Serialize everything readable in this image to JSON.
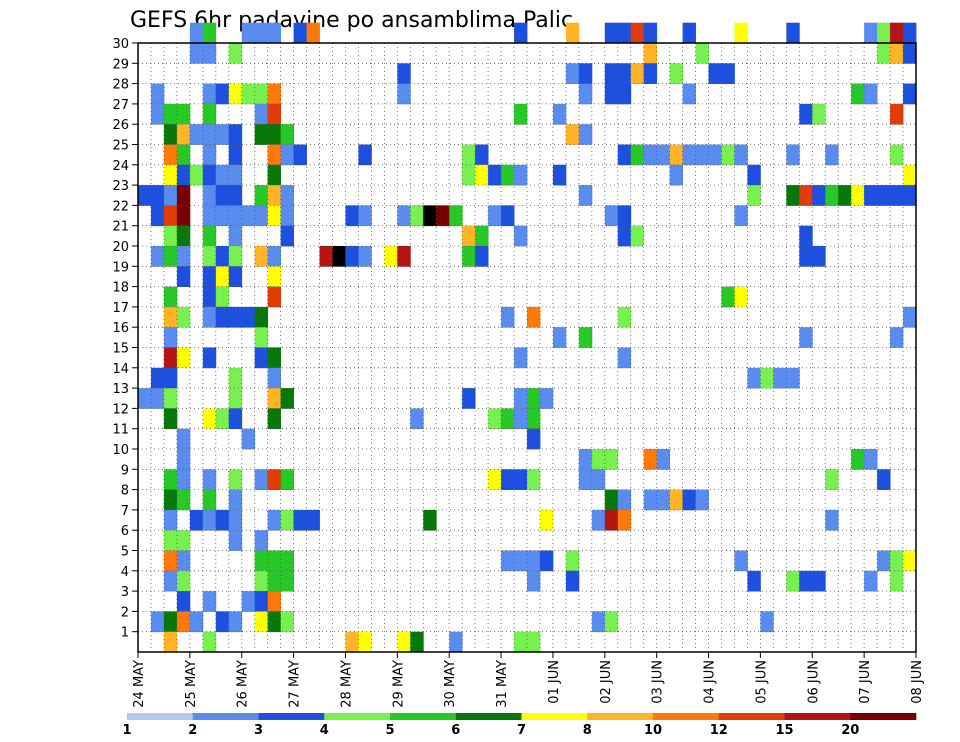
{
  "chart_data": {
    "type": "heatmap",
    "title": "GEFS 6hr padavine po ansamblima Palic",
    "xlabel": "",
    "ylabel": "",
    "x_ticks": [
      "24 MAY",
      "25 MAY",
      "26 MAY",
      "27 MAY",
      "28 MAY",
      "29 MAY",
      "30 MAY",
      "31 MAY",
      "01 JUN",
      "02 JUN",
      "03 JUN",
      "04 JUN",
      "05 JUN",
      "06 JUN",
      "07 JUN",
      "08 JUN"
    ],
    "y_ticks": [
      "1",
      "2",
      "3",
      "4",
      "5",
      "6",
      "7",
      "8",
      "9",
      "10",
      "11",
      "12",
      "13",
      "14",
      "15",
      "16",
      "17",
      "18",
      "19",
      "20",
      "21",
      "22",
      "23",
      "24",
      "25",
      "26",
      "27",
      "28",
      "29",
      "30"
    ],
    "x_range": [
      0,
      60
    ],
    "y_range": [
      0,
      30
    ],
    "grid": true,
    "levels": [
      "1",
      "2",
      "3",
      "4",
      "5",
      "6",
      "7",
      "8",
      "10",
      "12",
      "15",
      "20"
    ],
    "colors": [
      "#b4c8f0",
      "#5a8cf0",
      "#1e50e0",
      "#78f050",
      "#28c828",
      "#087808",
      "#ffff00",
      "#ffb428",
      "#ff780a",
      "#e03c0a",
      "#b41414",
      "#780000"
    ],
    "cells": [
      [
        4,
        30,
        1
      ],
      [
        5,
        30,
        4
      ],
      [
        8,
        30,
        1
      ],
      [
        9,
        30,
        1
      ],
      [
        10,
        30,
        1
      ],
      [
        12,
        30,
        2
      ],
      [
        13,
        30,
        8
      ],
      [
        29,
        30,
        2
      ],
      [
        33,
        30,
        7
      ],
      [
        36,
        30,
        2
      ],
      [
        37,
        30,
        2
      ],
      [
        38,
        30,
        9
      ],
      [
        39,
        30,
        2
      ],
      [
        42,
        30,
        2
      ],
      [
        46,
        30,
        6
      ],
      [
        50,
        30,
        2
      ],
      [
        56,
        30,
        1
      ],
      [
        57,
        30,
        3
      ],
      [
        58,
        30,
        10
      ],
      [
        59,
        30,
        2
      ],
      [
        4,
        29,
        1
      ],
      [
        5,
        29,
        1
      ],
      [
        7,
        29,
        3
      ],
      [
        39,
        29,
        7
      ],
      [
        43,
        29,
        3
      ],
      [
        57,
        29,
        3
      ],
      [
        58,
        29,
        7
      ],
      [
        59,
        29,
        2
      ],
      [
        20,
        28,
        2
      ],
      [
        33,
        28,
        1
      ],
      [
        34,
        28,
        2
      ],
      [
        36,
        28,
        2
      ],
      [
        37,
        28,
        2
      ],
      [
        38,
        28,
        7
      ],
      [
        39,
        28,
        2
      ],
      [
        41,
        28,
        3
      ],
      [
        44,
        28,
        2
      ],
      [
        45,
        28,
        2
      ],
      [
        1,
        27,
        1
      ],
      [
        5,
        27,
        1
      ],
      [
        6,
        27,
        2
      ],
      [
        7,
        27,
        6
      ],
      [
        8,
        27,
        3
      ],
      [
        9,
        27,
        3
      ],
      [
        10,
        27,
        8
      ],
      [
        20,
        27,
        1
      ],
      [
        34,
        27,
        1
      ],
      [
        36,
        27,
        2
      ],
      [
        37,
        27,
        2
      ],
      [
        42,
        27,
        1
      ],
      [
        55,
        27,
        4
      ],
      [
        56,
        27,
        1
      ],
      [
        59,
        27,
        2
      ],
      [
        1,
        26,
        1
      ],
      [
        2,
        26,
        4
      ],
      [
        3,
        26,
        4
      ],
      [
        5,
        26,
        4
      ],
      [
        9,
        26,
        1
      ],
      [
        10,
        26,
        9
      ],
      [
        29,
        26,
        4
      ],
      [
        32,
        26,
        1
      ],
      [
        51,
        26,
        2
      ],
      [
        52,
        26,
        3
      ],
      [
        58,
        26,
        9
      ],
      [
        2,
        25,
        5
      ],
      [
        3,
        25,
        7
      ],
      [
        4,
        25,
        1
      ],
      [
        5,
        25,
        1
      ],
      [
        6,
        25,
        1
      ],
      [
        7,
        25,
        2
      ],
      [
        9,
        25,
        5
      ],
      [
        10,
        25,
        5
      ],
      [
        11,
        25,
        4
      ],
      [
        33,
        25,
        7
      ],
      [
        34,
        25,
        1
      ],
      [
        2,
        24,
        8
      ],
      [
        3,
        24,
        4
      ],
      [
        5,
        24,
        1
      ],
      [
        7,
        24,
        2
      ],
      [
        10,
        24,
        8
      ],
      [
        11,
        24,
        1
      ],
      [
        12,
        24,
        2
      ],
      [
        17,
        24,
        2
      ],
      [
        25,
        24,
        3
      ],
      [
        26,
        24,
        2
      ],
      [
        37,
        24,
        2
      ],
      [
        38,
        24,
        4
      ],
      [
        39,
        24,
        1
      ],
      [
        40,
        24,
        1
      ],
      [
        41,
        24,
        7
      ],
      [
        42,
        24,
        1
      ],
      [
        43,
        24,
        1
      ],
      [
        44,
        24,
        1
      ],
      [
        45,
        24,
        3
      ],
      [
        46,
        24,
        1
      ],
      [
        50,
        24,
        1
      ],
      [
        53,
        24,
        1
      ],
      [
        58,
        24,
        3
      ],
      [
        2,
        23,
        6
      ],
      [
        3,
        23,
        2
      ],
      [
        4,
        23,
        3
      ],
      [
        5,
        23,
        2
      ],
      [
        6,
        23,
        1
      ],
      [
        7,
        23,
        1
      ],
      [
        10,
        23,
        5
      ],
      [
        25,
        23,
        3
      ],
      [
        26,
        23,
        6
      ],
      [
        27,
        23,
        2
      ],
      [
        28,
        23,
        4
      ],
      [
        29,
        23,
        1
      ],
      [
        32,
        23,
        2
      ],
      [
        41,
        23,
        1
      ],
      [
        47,
        23,
        2
      ],
      [
        59,
        23,
        6
      ],
      [
        0,
        22,
        2
      ],
      [
        1,
        22,
        2
      ],
      [
        2,
        22,
        1
      ],
      [
        3,
        22,
        11
      ],
      [
        5,
        22,
        1
      ],
      [
        6,
        22,
        2
      ],
      [
        7,
        22,
        2
      ],
      [
        9,
        22,
        4
      ],
      [
        10,
        22,
        7
      ],
      [
        11,
        22,
        1
      ],
      [
        34,
        22,
        1
      ],
      [
        47,
        22,
        3
      ],
      [
        50,
        22,
        5
      ],
      [
        51,
        22,
        9
      ],
      [
        52,
        22,
        2
      ],
      [
        53,
        22,
        4
      ],
      [
        54,
        22,
        5
      ],
      [
        55,
        22,
        6
      ],
      [
        56,
        22,
        2
      ],
      [
        57,
        22,
        2
      ],
      [
        58,
        22,
        2
      ],
      [
        59,
        22,
        2
      ],
      [
        1,
        21,
        2
      ],
      [
        2,
        21,
        9
      ],
      [
        3,
        21,
        11
      ],
      [
        5,
        21,
        1
      ],
      [
        6,
        21,
        1
      ],
      [
        7,
        21,
        1
      ],
      [
        8,
        21,
        1
      ],
      [
        9,
        21,
        1
      ],
      [
        10,
        21,
        6
      ],
      [
        11,
        21,
        1
      ],
      [
        16,
        21,
        2
      ],
      [
        17,
        21,
        1
      ],
      [
        20,
        21,
        1
      ],
      [
        21,
        21,
        3
      ],
      [
        22,
        21,
        12
      ],
      [
        23,
        21,
        11
      ],
      [
        24,
        21,
        4
      ],
      [
        27,
        21,
        1
      ],
      [
        28,
        21,
        2
      ],
      [
        36,
        21,
        1
      ],
      [
        37,
        21,
        2
      ],
      [
        46,
        21,
        1
      ],
      [
        2,
        20,
        3
      ],
      [
        3,
        20,
        5
      ],
      [
        5,
        20,
        4
      ],
      [
        7,
        20,
        1
      ],
      [
        11,
        20,
        2
      ],
      [
        25,
        20,
        7
      ],
      [
        26,
        20,
        4
      ],
      [
        29,
        20,
        1
      ],
      [
        37,
        20,
        2
      ],
      [
        38,
        20,
        3
      ],
      [
        51,
        20,
        2
      ],
      [
        1,
        19,
        1
      ],
      [
        2,
        19,
        4
      ],
      [
        3,
        19,
        1
      ],
      [
        5,
        19,
        3
      ],
      [
        6,
        19,
        2
      ],
      [
        7,
        19,
        3
      ],
      [
        9,
        19,
        7
      ],
      [
        10,
        19,
        1
      ],
      [
        14,
        19,
        10
      ],
      [
        15,
        19,
        12
      ],
      [
        16,
        19,
        2
      ],
      [
        17,
        19,
        1
      ],
      [
        19,
        19,
        6
      ],
      [
        20,
        19,
        10
      ],
      [
        25,
        19,
        4
      ],
      [
        26,
        19,
        2
      ],
      [
        51,
        19,
        2
      ],
      [
        52,
        19,
        2
      ],
      [
        3,
        18,
        2
      ],
      [
        5,
        18,
        2
      ],
      [
        6,
        18,
        6
      ],
      [
        7,
        18,
        2
      ],
      [
        10,
        18,
        6
      ],
      [
        2,
        17,
        4
      ],
      [
        5,
        17,
        2
      ],
      [
        6,
        17,
        3
      ],
      [
        10,
        17,
        9
      ],
      [
        45,
        17,
        4
      ],
      [
        46,
        17,
        6
      ],
      [
        2,
        16,
        7
      ],
      [
        3,
        16,
        3
      ],
      [
        5,
        16,
        1
      ],
      [
        6,
        16,
        2
      ],
      [
        7,
        16,
        2
      ],
      [
        8,
        16,
        2
      ],
      [
        9,
        16,
        5
      ],
      [
        28,
        16,
        1
      ],
      [
        30,
        16,
        8
      ],
      [
        37,
        16,
        3
      ],
      [
        59,
        16,
        1
      ],
      [
        2,
        15,
        1
      ],
      [
        9,
        15,
        3
      ],
      [
        32,
        15,
        1
      ],
      [
        34,
        15,
        4
      ],
      [
        51,
        15,
        1
      ],
      [
        58,
        15,
        1
      ],
      [
        2,
        14,
        10
      ],
      [
        3,
        14,
        6
      ],
      [
        5,
        14,
        2
      ],
      [
        9,
        14,
        2
      ],
      [
        10,
        14,
        5
      ],
      [
        29,
        14,
        1
      ],
      [
        37,
        14,
        1
      ],
      [
        1,
        13,
        2
      ],
      [
        2,
        13,
        2
      ],
      [
        7,
        13,
        3
      ],
      [
        10,
        13,
        1
      ],
      [
        47,
        13,
        1
      ],
      [
        48,
        13,
        3
      ],
      [
        49,
        13,
        1
      ],
      [
        50,
        13,
        1
      ],
      [
        0,
        12,
        1
      ],
      [
        1,
        12,
        1
      ],
      [
        2,
        12,
        3
      ],
      [
        7,
        12,
        3
      ],
      [
        10,
        12,
        7
      ],
      [
        11,
        12,
        5
      ],
      [
        25,
        12,
        2
      ],
      [
        29,
        12,
        1
      ],
      [
        30,
        12,
        4
      ],
      [
        31,
        12,
        1
      ],
      [
        2,
        11,
        5
      ],
      [
        5,
        11,
        6
      ],
      [
        6,
        11,
        3
      ],
      [
        7,
        11,
        2
      ],
      [
        10,
        11,
        5
      ],
      [
        21,
        11,
        1
      ],
      [
        27,
        11,
        3
      ],
      [
        28,
        11,
        4
      ],
      [
        29,
        11,
        1
      ],
      [
        30,
        11,
        4
      ],
      [
        3,
        10,
        1
      ],
      [
        8,
        10,
        1
      ],
      [
        30,
        10,
        2
      ],
      [
        3,
        9,
        1
      ],
      [
        34,
        9,
        1
      ],
      [
        35,
        9,
        3
      ],
      [
        36,
        9,
        3
      ],
      [
        39,
        9,
        8
      ],
      [
        40,
        9,
        1
      ],
      [
        55,
        9,
        4
      ],
      [
        56,
        9,
        1
      ],
      [
        2,
        8,
        4
      ],
      [
        3,
        8,
        1
      ],
      [
        5,
        8,
        1
      ],
      [
        7,
        8,
        3
      ],
      [
        9,
        8,
        1
      ],
      [
        10,
        8,
        9
      ],
      [
        11,
        8,
        4
      ],
      [
        27,
        8,
        6
      ],
      [
        28,
        8,
        2
      ],
      [
        29,
        8,
        2
      ],
      [
        30,
        8,
        3
      ],
      [
        34,
        8,
        1
      ],
      [
        35,
        8,
        1
      ],
      [
        53,
        8,
        3
      ],
      [
        57,
        8,
        2
      ],
      [
        2,
        7,
        5
      ],
      [
        3,
        7,
        4
      ],
      [
        5,
        7,
        4
      ],
      [
        7,
        7,
        1
      ],
      [
        36,
        7,
        5
      ],
      [
        37,
        7,
        1
      ],
      [
        39,
        7,
        1
      ],
      [
        40,
        7,
        1
      ],
      [
        41,
        7,
        7
      ],
      [
        42,
        7,
        2
      ],
      [
        43,
        7,
        1
      ],
      [
        2,
        6,
        1
      ],
      [
        4,
        6,
        2
      ],
      [
        5,
        6,
        1
      ],
      [
        6,
        6,
        2
      ],
      [
        7,
        6,
        1
      ],
      [
        10,
        6,
        1
      ],
      [
        11,
        6,
        3
      ],
      [
        12,
        6,
        2
      ],
      [
        13,
        6,
        2
      ],
      [
        22,
        6,
        5
      ],
      [
        31,
        6,
        6
      ],
      [
        35,
        6,
        1
      ],
      [
        36,
        6,
        10
      ],
      [
        37,
        6,
        8
      ],
      [
        53,
        6,
        1
      ],
      [
        2,
        5,
        3
      ],
      [
        3,
        5,
        3
      ],
      [
        7,
        5,
        1
      ],
      [
        9,
        5,
        1
      ],
      [
        2,
        4,
        8
      ],
      [
        3,
        4,
        1
      ],
      [
        9,
        4,
        4
      ],
      [
        10,
        4,
        4
      ],
      [
        11,
        4,
        4
      ],
      [
        28,
        4,
        1
      ],
      [
        29,
        4,
        1
      ],
      [
        30,
        4,
        1
      ],
      [
        31,
        4,
        2
      ],
      [
        33,
        4,
        3
      ],
      [
        46,
        4,
        1
      ],
      [
        57,
        4,
        1
      ],
      [
        58,
        4,
        3
      ],
      [
        59,
        4,
        6
      ],
      [
        2,
        3,
        1
      ],
      [
        3,
        3,
        3
      ],
      [
        9,
        3,
        3
      ],
      [
        10,
        3,
        4
      ],
      [
        11,
        3,
        4
      ],
      [
        30,
        3,
        1
      ],
      [
        33,
        3,
        2
      ],
      [
        47,
        3,
        2
      ],
      [
        50,
        3,
        3
      ],
      [
        51,
        3,
        2
      ],
      [
        52,
        3,
        2
      ],
      [
        56,
        3,
        1
      ],
      [
        58,
        3,
        3
      ],
      [
        3,
        2,
        2
      ],
      [
        5,
        2,
        1
      ],
      [
        8,
        2,
        1
      ],
      [
        9,
        2,
        2
      ],
      [
        10,
        2,
        8
      ],
      [
        1,
        1,
        1
      ],
      [
        2,
        1,
        5
      ],
      [
        3,
        1,
        8
      ],
      [
        4,
        1,
        1
      ],
      [
        6,
        1,
        2
      ],
      [
        7,
        1,
        1
      ],
      [
        9,
        1,
        6
      ],
      [
        10,
        1,
        5
      ],
      [
        11,
        1,
        3
      ],
      [
        35,
        1,
        1
      ],
      [
        36,
        1,
        3
      ],
      [
        48,
        1,
        1
      ],
      [
        2,
        0,
        7
      ],
      [
        5,
        0,
        3
      ],
      [
        16,
        0,
        7
      ],
      [
        17,
        0,
        6
      ],
      [
        20,
        0,
        6
      ],
      [
        21,
        0,
        5
      ],
      [
        24,
        0,
        1
      ],
      [
        29,
        0,
        3
      ],
      [
        30,
        0,
        3
      ]
    ]
  }
}
